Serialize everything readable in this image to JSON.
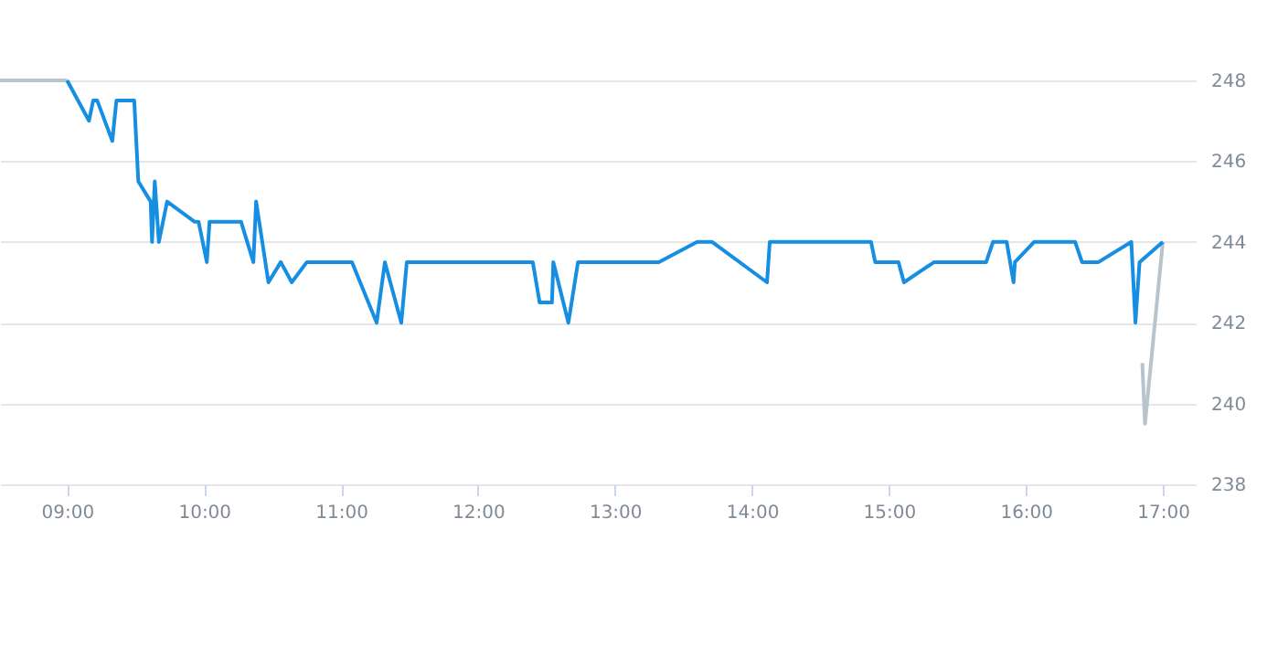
{
  "chart_data": {
    "type": "line",
    "xlim": [
      8.51,
      17.24
    ],
    "xticks": [
      {
        "value": 9,
        "label": "09:00"
      },
      {
        "value": 10,
        "label": "10:00"
      },
      {
        "value": 11,
        "label": "11:00"
      },
      {
        "value": 12,
        "label": "12:00"
      },
      {
        "value": 13,
        "label": "13:00"
      },
      {
        "value": 14,
        "label": "14:00"
      },
      {
        "value": 15,
        "label": "15:00"
      },
      {
        "value": 16,
        "label": "16:00"
      },
      {
        "value": 17,
        "label": "17:00"
      }
    ],
    "ylim": [
      238,
      248
    ],
    "yticks": [
      238,
      240,
      242,
      244,
      246,
      248
    ],
    "grid": "y",
    "marker": "none",
    "line_style": "solid",
    "series": [
      {
        "color": "#b8c4cc",
        "x": [
          8.51,
          9.0
        ],
        "values": [
          248,
          248
        ]
      },
      {
        "color": "#b8c4cc",
        "x": [
          16.85,
          16.87,
          17.0
        ],
        "values": [
          241,
          239.5,
          244
        ]
      },
      {
        "color": "#168fe2",
        "x": [
          9.0,
          9.16,
          9.19,
          9.22,
          9.33,
          9.36,
          9.49,
          9.52,
          9.61,
          9.62,
          9.64,
          9.67,
          9.73,
          9.93,
          9.96,
          10.02,
          10.04,
          10.27,
          10.36,
          10.38,
          10.47,
          10.56,
          10.64,
          10.75,
          11.08,
          11.26,
          11.32,
          11.44,
          11.48,
          12.4,
          12.45,
          12.54,
          12.55,
          12.66,
          12.73,
          13.32,
          13.6,
          13.71,
          14.11,
          14.13,
          14.87,
          14.9,
          15.07,
          15.11,
          15.33,
          15.71,
          15.76,
          15.86,
          15.91,
          15.92,
          16.06,
          16.36,
          16.41,
          16.53,
          16.77,
          16.8,
          16.83,
          17.0
        ],
        "values": [
          248,
          247,
          247.5,
          247.5,
          246.5,
          247.5,
          247.5,
          245.5,
          245,
          244,
          245.5,
          244,
          245,
          244.5,
          244.5,
          243.5,
          244.5,
          244.5,
          243.5,
          245,
          243,
          243.5,
          243,
          243.5,
          243.5,
          242,
          243.5,
          242,
          243.5,
          243.5,
          242.5,
          242.5,
          243.5,
          242,
          243.5,
          243.5,
          244,
          244,
          243,
          244,
          244,
          243.5,
          243.5,
          243,
          243.5,
          243.5,
          244,
          244,
          243,
          243.5,
          244,
          244,
          243.5,
          243.5,
          244,
          242,
          243.5,
          244
        ]
      }
    ]
  }
}
